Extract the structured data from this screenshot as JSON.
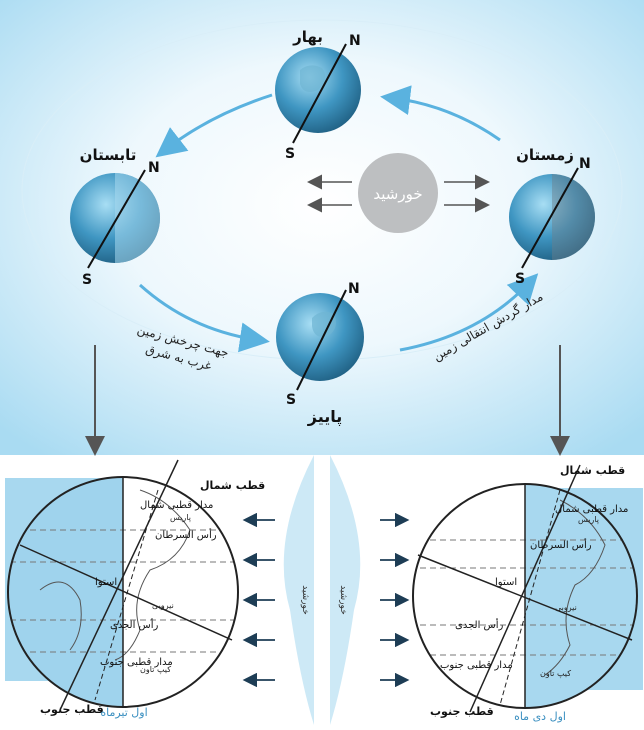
{
  "top": {
    "sun_label": "خورشید",
    "seasons": {
      "spring": "بهار",
      "summer": "تابستان",
      "autumn": "پاییز",
      "winter": "زمستان"
    },
    "pole_north": "N",
    "pole_south": "S",
    "rotation_label_line1": "جهت چرخش زمین",
    "rotation_label_line2": "غرب به شرق",
    "orbit_label": "مدار گردش انتقالی زمین"
  },
  "bottom_left": {
    "north_pole": "قطب شمال",
    "south_pole": "قطب جنوب",
    "arctic_circle": "مدار قطبی شمال",
    "tropic_cancer": "رأس السرطان",
    "equator": "استوا",
    "tropic_capricorn": "رأس الجدی",
    "antarctic_circle": "مدار قطبی جنوب",
    "city1": "پاریس",
    "city2": "نیروبی",
    "city3": "کیپ تاون",
    "date": "اول تیرماه"
  },
  "bottom_right": {
    "north_pole": "قطب شمال",
    "south_pole": "قطب جنوب",
    "arctic_circle": "مدار قطبی شمال",
    "tropic_cancer": "رأس السرطان",
    "equator": "استوا",
    "tropic_capricorn": "رأس الجدی",
    "antarctic_circle": "مدار قطبی جنوب",
    "city1": "پاریس",
    "city2": "نیروبی",
    "city3": "کیپ تاون",
    "date": "اول دی ماه"
  },
  "sun_strip": {
    "left_label": "خورشید",
    "right_label": "خورشید"
  },
  "colors": {
    "sky_light": "#eaf6fc",
    "sky_mid": "#bfe4f5",
    "arrow_blue": "#5ab2df",
    "sun_gray": "#bdbfc1",
    "globe_dark": "#2e7fa8",
    "globe_light": "#8cc9e6",
    "panel_blue": "#a8d8ef",
    "panel_dark": "#7fc3e6"
  }
}
